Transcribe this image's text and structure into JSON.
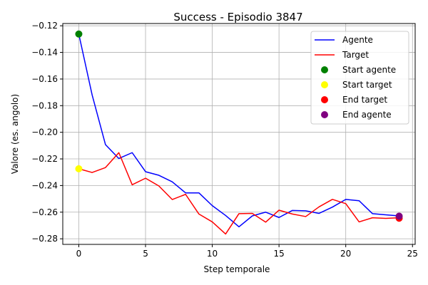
{
  "chart_data": {
    "type": "line",
    "title": "Success - Episodio 3847",
    "xlabel": "Step temporale",
    "ylabel": "Valore (es. angolo)",
    "xlim": [
      -1.2,
      25.2
    ],
    "ylim": [
      -0.2842,
      -0.1183
    ],
    "xticks": [
      0,
      5,
      10,
      15,
      20,
      25
    ],
    "yticks": [
      -0.12,
      -0.14,
      -0.16,
      -0.18,
      -0.2,
      -0.22,
      -0.24,
      -0.26,
      -0.28
    ],
    "ytick_labels": [
      "−0.12",
      "−0.14",
      "−0.16",
      "−0.18",
      "−0.20",
      "−0.22",
      "−0.24",
      "−0.26",
      "−0.28"
    ],
    "grid": true,
    "legend_position": "top-right",
    "series": [
      {
        "name": "Agente",
        "kind": "line",
        "color": "#0000ff",
        "x": [
          0,
          1,
          2,
          3,
          4,
          5,
          6,
          7,
          8,
          9,
          10,
          11,
          12,
          13,
          14,
          15,
          16,
          17,
          18,
          19,
          20,
          21,
          22,
          23,
          24
        ],
        "y": [
          -0.1262,
          -0.172,
          -0.2093,
          -0.2197,
          -0.2153,
          -0.2296,
          -0.2323,
          -0.2372,
          -0.2455,
          -0.2455,
          -0.2551,
          -0.2625,
          -0.271,
          -0.2628,
          -0.26,
          -0.264,
          -0.2587,
          -0.259,
          -0.2609,
          -0.2562,
          -0.2504,
          -0.2514,
          -0.2611,
          -0.262,
          -0.2628
        ]
      },
      {
        "name": "Target",
        "kind": "line",
        "color": "#ff0000",
        "x": [
          0,
          1,
          2,
          3,
          4,
          5,
          6,
          7,
          8,
          9,
          10,
          11,
          12,
          13,
          14,
          15,
          16,
          17,
          18,
          19,
          20,
          21,
          22,
          23,
          24
        ],
        "y": [
          -0.2274,
          -0.2302,
          -0.2265,
          -0.2153,
          -0.2394,
          -0.2345,
          -0.2403,
          -0.2505,
          -0.2466,
          -0.2614,
          -0.2673,
          -0.2764,
          -0.2611,
          -0.2609,
          -0.2675,
          -0.2585,
          -0.2614,
          -0.2633,
          -0.256,
          -0.2504,
          -0.2536,
          -0.2673,
          -0.2642,
          -0.2647,
          -0.2642
        ]
      },
      {
        "name": "Start agente",
        "kind": "point",
        "color": "#008000",
        "x": [
          0
        ],
        "y": [
          -0.1262
        ]
      },
      {
        "name": "Start target",
        "kind": "point",
        "color": "#ffff00",
        "x": [
          0
        ],
        "y": [
          -0.2274
        ]
      },
      {
        "name": "End target",
        "kind": "point",
        "color": "#ff0000",
        "x": [
          24
        ],
        "y": [
          -0.2645
        ]
      },
      {
        "name": "End agente",
        "kind": "point",
        "color": "#800080",
        "x": [
          24
        ],
        "y": [
          -0.263
        ]
      }
    ]
  }
}
